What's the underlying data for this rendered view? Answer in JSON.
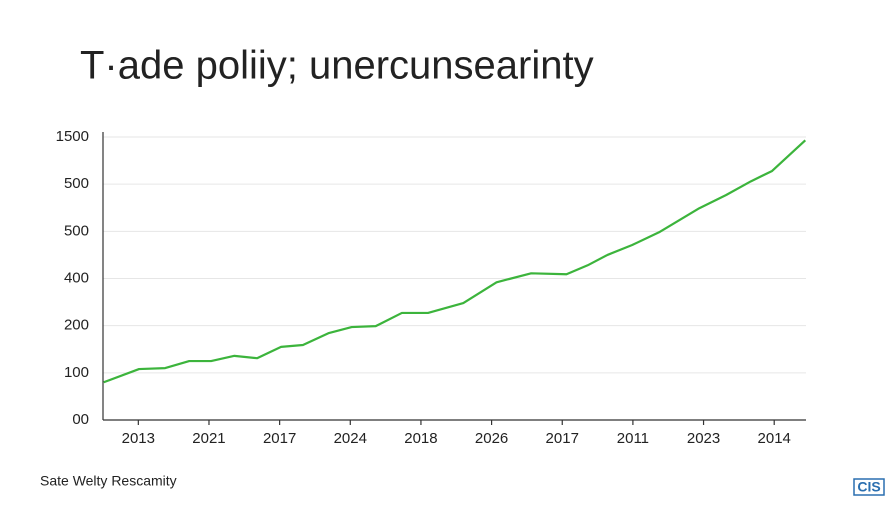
{
  "chart_data": {
    "type": "line",
    "title": "T·ade poliiy; unercunsearinty",
    "source": "Sate Welty Rescamity",
    "logo": "CIS",
    "x": [
      0.51,
      1.01,
      1.38,
      1.72,
      2.03,
      2.36,
      2.68,
      3.02,
      3.33,
      3.69,
      4.02,
      4.36,
      4.73,
      5.1,
      5.6,
      6.07,
      6.56,
      7.06,
      7.36,
      7.64,
      7.99,
      8.37,
      8.94,
      9.32,
      9.67,
      9.97,
      10.44
    ],
    "series": [
      {
        "color": "#3cb43c",
        "values": [
          80,
          108,
          110,
          125,
          125,
          136,
          131,
          155,
          159,
          184,
          197,
          199,
          227,
          227,
          248,
          292,
          311,
          309,
          328,
          350,
          371,
          398,
          449,
          477,
          506,
          528,
          593
        ]
      }
    ],
    "xlim": [
      0.5,
      10.45
    ],
    "xticks": [
      {
        "value": 1,
        "label": "2013"
      },
      {
        "value": 2,
        "label": "2021"
      },
      {
        "value": 3,
        "label": "2017"
      },
      {
        "value": 4,
        "label": "2024"
      },
      {
        "value": 5,
        "label": "2018"
      },
      {
        "value": 6,
        "label": "2026"
      },
      {
        "value": 7,
        "label": "2017"
      },
      {
        "value": 8,
        "label": "2011"
      },
      {
        "value": 9,
        "label": "2023"
      },
      {
        "value": 10,
        "label": "2014"
      }
    ],
    "ylim": [
      0,
      600
    ],
    "yticks": [
      {
        "value": 0,
        "label": "00"
      },
      100,
      200,
      {
        "value": 300,
        "label": "400"
      },
      {
        "value": 400,
        "label": "500"
      },
      500,
      {
        "value": 600,
        "label": "1500"
      }
    ],
    "grid": true
  }
}
